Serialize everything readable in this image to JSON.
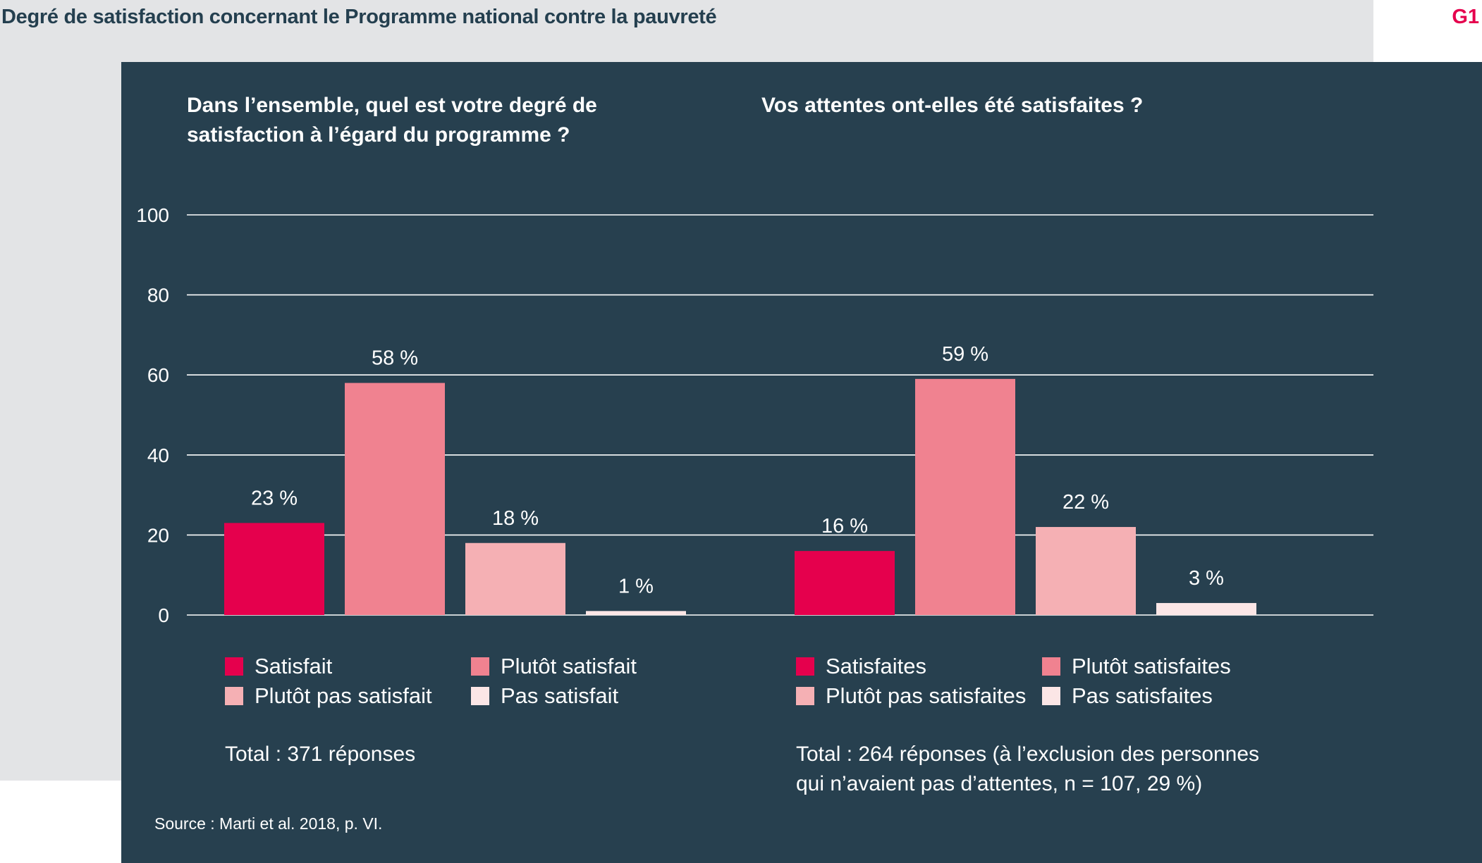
{
  "header": {
    "title": "Degré de satisfaction concernant le Programme national contre la pauvreté",
    "code": "G1"
  },
  "colors": {
    "panel": "#27404f",
    "series": [
      "#e5004d",
      "#f08290",
      "#f5b0b4",
      "#fbe6e6"
    ]
  },
  "chart_data": [
    {
      "type": "bar",
      "title": "Dans l’ensemble, quel est votre degré de satisfaction à l’égard du programme ?",
      "categories": [
        "Satisfait",
        "Plutôt satisfait",
        "Plutôt pas satisfait",
        "Pas satisfait"
      ],
      "values": [
        23,
        58,
        18,
        1
      ],
      "value_labels": [
        "23 %",
        "58 %",
        "18 %",
        "1 %"
      ],
      "ylim": [
        0,
        100
      ],
      "yticks": [
        0,
        20,
        40,
        60,
        80,
        100
      ],
      "grid": true,
      "legend": "bottom",
      "note": "Total : 371 réponses"
    },
    {
      "type": "bar",
      "title": "Vos attentes ont-elles été satisfaites ?",
      "categories": [
        "Satisfaites",
        "Plutôt satisfaites",
        "Plutôt pas satisfaites",
        "Pas satisfaites"
      ],
      "values": [
        16,
        59,
        22,
        3
      ],
      "value_labels": [
        "16 %",
        "59 %",
        "22 %",
        "3 %"
      ],
      "ylim": [
        0,
        100
      ],
      "yticks": [
        0,
        20,
        40,
        60,
        80,
        100
      ],
      "grid": true,
      "legend": "bottom",
      "note_lines": [
        "Total : 264 réponses (à l’exclusion des personnes",
        "qui n’avaient pas d’attentes, n = 107, 29 %)"
      ]
    }
  ],
  "source": "Source : Marti et al. 2018, p. VI."
}
